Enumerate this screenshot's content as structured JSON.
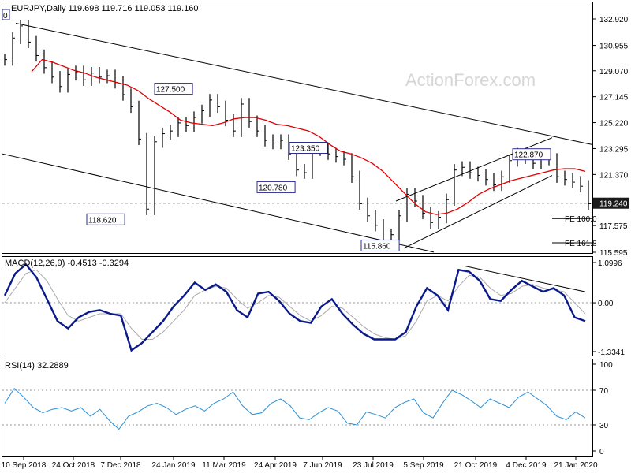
{
  "chart_data": {
    "type": "line",
    "title": "EURJPY,Daily  119.698 119.716 119.053 119.160",
    "watermark": "ActionForex.com",
    "x_ticks": [
      "10 Sep 2018",
      "24 Oct 2018",
      "7 Dec 2018",
      "24 Jan 2019",
      "11 Mar 2019",
      "24 Apr 2019",
      "7 Jun 2019",
      "23 Jul 2019",
      "5 Sep 2019",
      "21 Oct 2019",
      "4 Dec 2019",
      "21 Jan 2020"
    ],
    "price": {
      "ylim": [
        115.595,
        132.92
      ],
      "y_ticks": [
        "132.920",
        "130.955",
        "129.070",
        "127.145",
        "125.220",
        "123.295",
        "121.370",
        "119.240",
        "117.575",
        "115.595"
      ],
      "current_price": "119.240",
      "close_series": [
        129.9,
        131.5,
        132.4,
        131.2,
        130.2,
        129.3,
        128.6,
        127.9,
        128.8,
        129.0,
        128.4,
        128.9,
        128.6,
        128.7,
        128.2,
        127.3,
        126.4,
        124.0,
        118.8,
        123.8,
        124.4,
        124.6,
        125.2,
        125.0,
        125.6,
        126.1,
        126.9,
        126.4,
        125.4,
        124.6,
        126.6,
        125.3,
        124.6,
        123.9,
        123.7,
        123.9,
        122.9,
        121.7,
        121.5,
        123.2,
        123.3,
        122.9,
        122.7,
        122.5,
        121.2,
        119.2,
        118.3,
        117.6,
        116.4,
        116.9,
        118.3,
        119.9,
        119.4,
        118.5,
        117.8,
        118.2,
        119.5,
        121.7,
        121.9,
        121.5,
        121.3,
        121.0,
        120.6,
        121.2,
        122.4,
        122.9,
        122.6,
        122.2,
        122.8,
        122.5,
        121.2,
        121.0,
        120.8,
        120.5,
        119.2
      ],
      "sma_series": [
        129.0,
        129.9,
        129.7,
        129.4,
        129.1,
        128.9,
        128.6,
        128.4,
        128.2,
        128.0,
        127.6,
        127.0,
        126.5,
        126.0,
        125.4,
        125.2,
        125.1,
        125.0,
        125.2,
        125.5,
        125.6,
        125.6,
        125.4,
        125.1,
        125.0,
        124.8,
        124.6,
        124.2,
        123.6,
        123.1,
        122.9,
        122.6,
        122.2,
        121.6,
        120.8,
        120.0,
        119.2,
        118.6,
        118.4,
        118.5,
        118.8,
        119.3,
        119.9,
        120.3,
        120.6,
        120.9,
        121.1,
        121.3,
        121.5,
        121.7,
        121.8,
        121.8,
        121.6
      ],
      "annotations": [
        {
          "text": "127.500",
          "price": 127.5
        },
        {
          "text": "118.620",
          "price": 118.62
        },
        {
          "text": "123.350",
          "price": 123.35
        },
        {
          "text": "120.780",
          "price": 120.78
        },
        {
          "text": "115.860",
          "price": 115.86
        },
        {
          "text": "122.870",
          "price": 122.87
        },
        {
          "text": "FE 100.0",
          "price": 118.1
        },
        {
          "text": "FE 161.8",
          "price": 116.3
        }
      ],
      "left_marker": "0"
    },
    "macd": {
      "label": "MACD(12,26,9) -0.4513 -0.3294",
      "ylim": [
        -1.3341,
        1.0996
      ],
      "y_ticks": [
        "1.0996",
        "0.00",
        "-1.3341"
      ],
      "macd_series": [
        0.2,
        0.8,
        1.05,
        0.7,
        0.1,
        -0.5,
        -0.7,
        -0.4,
        -0.25,
        -0.2,
        -0.3,
        -0.35,
        -1.3,
        -1.1,
        -0.8,
        -0.5,
        -0.1,
        0.2,
        0.55,
        0.35,
        0.5,
        0.3,
        -0.2,
        -0.4,
        0.25,
        0.3,
        0.05,
        -0.3,
        -0.5,
        -0.55,
        -0.1,
        0.1,
        -0.3,
        -0.6,
        -0.85,
        -1.0,
        -1.0,
        -1.0,
        -0.8,
        -0.1,
        0.4,
        0.2,
        -0.2,
        0.9,
        0.85,
        0.6,
        0.1,
        0.05,
        0.35,
        0.6,
        0.45,
        0.3,
        0.4,
        0.2,
        -0.4,
        -0.5
      ],
      "signal_series": [
        0.0,
        0.4,
        0.8,
        0.9,
        0.6,
        0.1,
        -0.35,
        -0.5,
        -0.4,
        -0.3,
        -0.3,
        -0.3,
        -0.7,
        -1.0,
        -1.0,
        -0.8,
        -0.5,
        -0.2,
        0.2,
        0.35,
        0.45,
        0.4,
        0.1,
        -0.15,
        0.0,
        0.2,
        0.15,
        -0.1,
        -0.35,
        -0.5,
        -0.35,
        -0.1,
        -0.15,
        -0.4,
        -0.65,
        -0.85,
        -0.95,
        -1.0,
        -0.9,
        -0.5,
        0.05,
        0.2,
        0.05,
        0.45,
        0.75,
        0.7,
        0.4,
        0.2,
        0.25,
        0.45,
        0.5,
        0.4,
        0.35,
        0.3,
        0.0,
        -0.3
      ]
    },
    "rsi": {
      "label": "RSI(14) 32.2889",
      "ylim": [
        0,
        100
      ],
      "y_ticks": [
        "100",
        "70",
        "30",
        "0"
      ],
      "levels": [
        70,
        30
      ],
      "series": [
        55,
        72,
        62,
        50,
        44,
        48,
        50,
        46,
        50,
        40,
        48,
        35,
        25,
        40,
        45,
        52,
        55,
        50,
        42,
        48,
        52,
        46,
        55,
        60,
        68,
        52,
        42,
        44,
        55,
        60,
        52,
        38,
        36,
        44,
        50,
        46,
        32,
        30,
        45,
        42,
        38,
        50,
        56,
        60,
        44,
        38,
        55,
        70,
        65,
        58,
        50,
        60,
        55,
        50,
        62,
        68,
        60,
        52,
        40,
        36,
        45,
        38
      ]
    }
  }
}
